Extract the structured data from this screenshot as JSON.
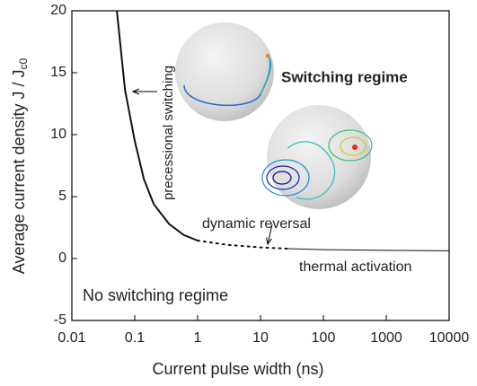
{
  "chart_data": {
    "type": "line",
    "x_label": "Current pulse width (ns)",
    "y_label": "Average current density J / J",
    "y_label_sub": "c0",
    "xscale": "log",
    "xlim": [
      0.01,
      10000
    ],
    "xticks": [
      0.01,
      0.1,
      1,
      10,
      100,
      1000,
      10000
    ],
    "ylim": [
      -5,
      20
    ],
    "yticks": [
      -5,
      0,
      5,
      10,
      15,
      20
    ],
    "series": [
      {
        "style": "solid",
        "width": 2,
        "color": "#111111",
        "x": [
          0.052,
          0.07,
          0.1,
          0.14,
          0.2,
          0.35,
          0.6,
          1
        ],
        "values": [
          20,
          13.6,
          9.5,
          6.4,
          4.4,
          2.8,
          1.9,
          1.45
        ]
      },
      {
        "style": "dotted",
        "width": 2,
        "color": "#111111",
        "x": [
          1,
          3,
          10,
          27
        ],
        "values": [
          1.45,
          1.1,
          0.9,
          0.8
        ]
      },
      {
        "style": "solid",
        "width": 1,
        "color": "#111111",
        "x": [
          27,
          100,
          1000,
          10000
        ],
        "values": [
          0.8,
          0.72,
          0.66,
          0.62
        ]
      }
    ],
    "annotations": {
      "switching": "Switching regime",
      "no_switching": "No switching regime",
      "precessional": "precessional switching",
      "dynamic": "dynamic reversal",
      "thermal": "thermal activation"
    }
  }
}
